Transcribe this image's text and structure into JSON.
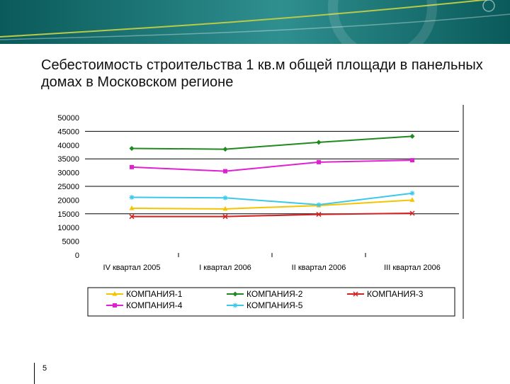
{
  "slide": {
    "title": "Себестоимость строительства 1 кв.м общей площади в панельных домах в Московском регионе",
    "page_number": "5"
  },
  "colors": {
    "banner_dark": "#0a5a5a",
    "banner_light": "#2f8f8f",
    "swoosh": "#b9c94a"
  },
  "chart_data": {
    "type": "line",
    "title": "",
    "xlabel": "",
    "ylabel": "",
    "categories": [
      "IV квартал 2005",
      "I квартал 2006",
      "II квартал 2006",
      "III квартал 2006"
    ],
    "ylim": [
      0,
      50000
    ],
    "yticks": [
      "0",
      "5000",
      "10000",
      "15000",
      "20000",
      "25000",
      "30000",
      "35000",
      "40000",
      "45000",
      "50000"
    ],
    "gridlines": [
      15000,
      25000,
      35000,
      45000
    ],
    "legend_position": "bottom",
    "series": [
      {
        "name": "КОМПАНИЯ-1",
        "color": "#f5c400",
        "marker": "triangle",
        "values": [
          17000,
          16800,
          18000,
          20000
        ]
      },
      {
        "name": "КОМПАНИЯ-2",
        "color": "#1f8a1f",
        "marker": "diamond",
        "values": [
          38800,
          38500,
          41000,
          43200
        ]
      },
      {
        "name": "КОМПАНИЯ-3",
        "color": "#d42020",
        "marker": "x",
        "values": [
          14000,
          14000,
          14800,
          15200
        ]
      },
      {
        "name": "КОМПАНИЯ-4",
        "color": "#e020d0",
        "marker": "square",
        "values": [
          32000,
          30500,
          33800,
          34500
        ]
      },
      {
        "name": "КОМПАНИЯ-5",
        "color": "#3cc8e8",
        "marker": "star",
        "values": [
          21000,
          20800,
          18300,
          22500
        ]
      }
    ]
  }
}
